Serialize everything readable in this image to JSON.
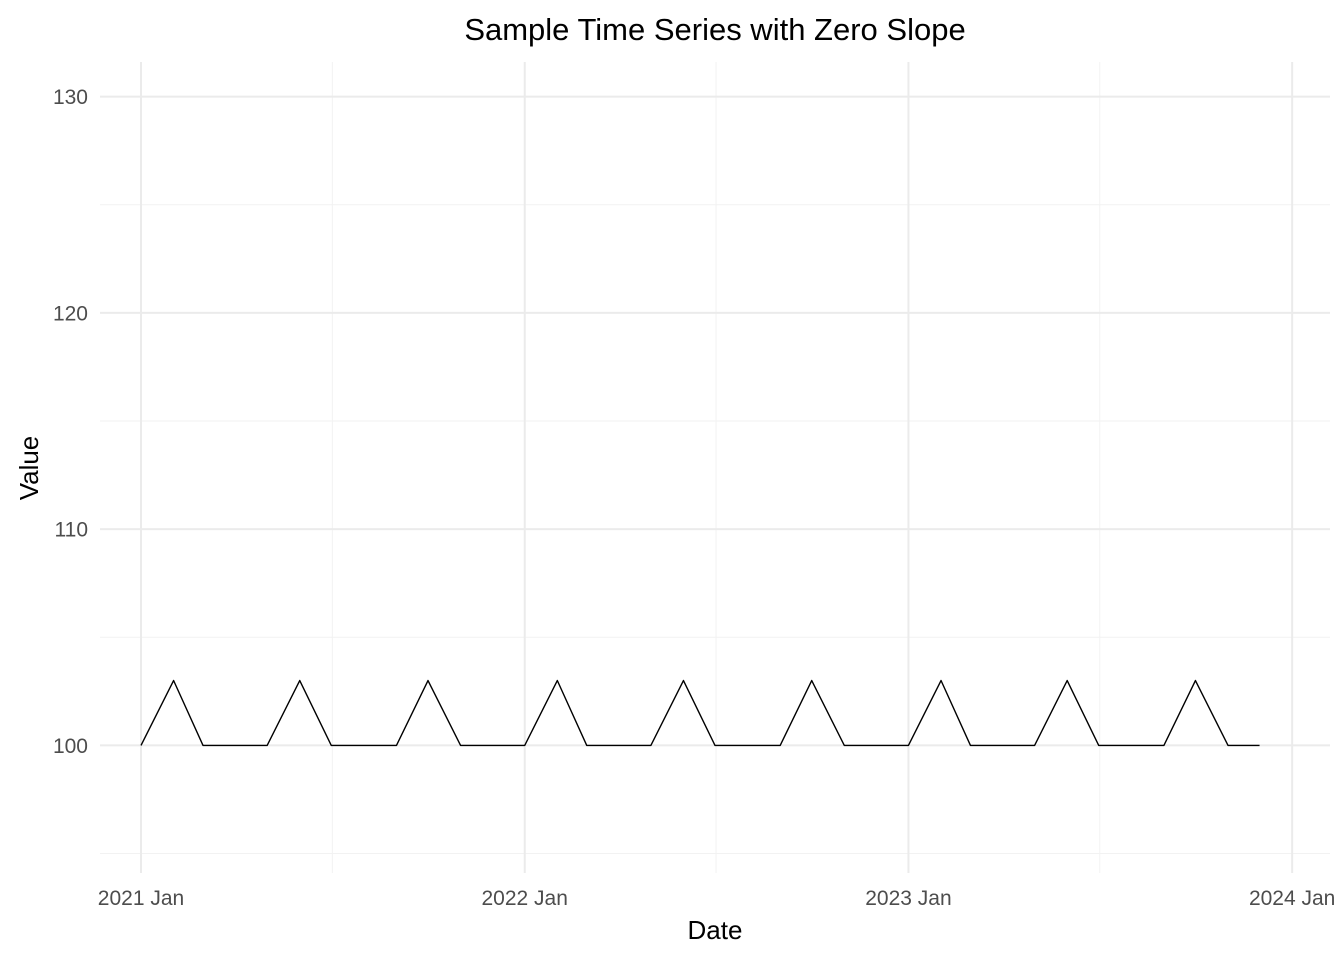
{
  "chart_data": {
    "type": "line",
    "title": "Sample Time Series with Zero Slope",
    "xlabel": "Date",
    "ylabel": "Value",
    "x_ticks": [
      "2021 Jan",
      "2022 Jan",
      "2023 Jan",
      "2024 Jan"
    ],
    "y_ticks": [
      100,
      110,
      120,
      130
    ],
    "ylim": [
      94.1,
      131.6
    ],
    "xlim": [
      "2020-11-23",
      "2024-02-06"
    ],
    "grid": true,
    "series": [
      {
        "x": [
          "2021-01-01",
          "2021-02-01",
          "2021-03-01",
          "2021-04-01",
          "2021-05-01",
          "2021-06-01",
          "2021-07-01",
          "2021-08-01",
          "2021-09-01",
          "2021-10-01",
          "2021-11-01",
          "2021-12-01",
          "2022-01-01",
          "2022-02-01",
          "2022-03-01",
          "2022-04-01",
          "2022-05-01",
          "2022-06-01",
          "2022-07-01",
          "2022-08-01",
          "2022-09-01",
          "2022-10-01",
          "2022-11-01",
          "2022-12-01",
          "2023-01-01",
          "2023-02-01",
          "2023-03-01",
          "2023-04-01",
          "2023-05-01",
          "2023-06-01",
          "2023-07-01",
          "2023-08-01",
          "2023-09-01",
          "2023-10-01",
          "2023-11-01",
          "2023-12-01"
        ],
        "values": [
          100,
          103,
          100,
          100,
          100,
          103,
          100,
          100,
          100,
          103,
          100,
          100,
          100,
          103,
          100,
          100,
          100,
          103,
          100,
          100,
          100,
          103,
          100,
          100,
          100,
          103,
          100,
          100,
          100,
          103,
          100,
          100,
          100,
          103,
          100,
          100
        ]
      }
    ]
  }
}
